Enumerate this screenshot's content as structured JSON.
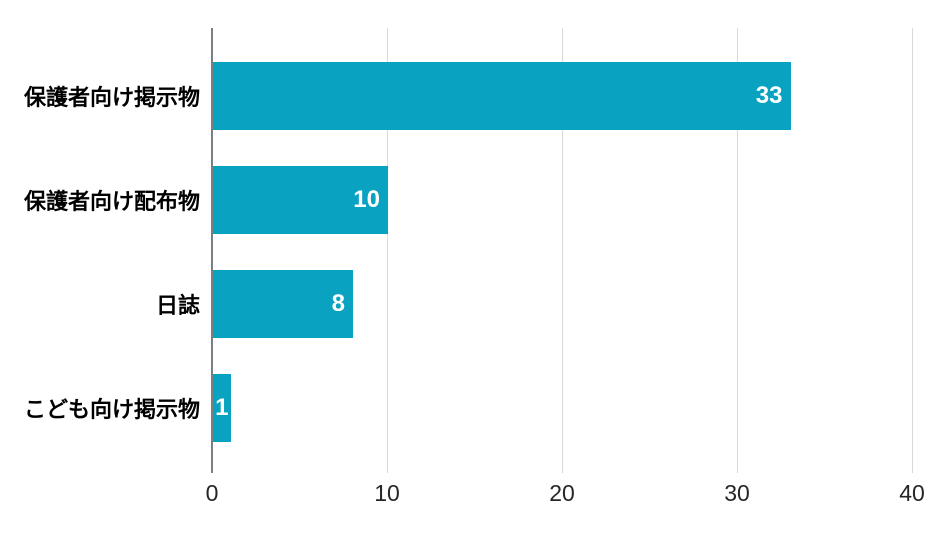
{
  "chart_data": {
    "type": "bar",
    "orientation": "horizontal",
    "title": "",
    "categories": [
      "保護者向け掲示物",
      "保護者向け配布物",
      "日誌",
      "こども向け掲示物"
    ],
    "values": [
      33,
      10,
      8,
      1
    ],
    "data_labels": [
      "33",
      "10",
      "8",
      "1"
    ],
    "x_ticks": [
      "0",
      "10",
      "20",
      "30",
      "40"
    ],
    "x_tick_values": [
      0,
      10,
      20,
      30,
      40
    ],
    "xlim": [
      0,
      40
    ],
    "grid": true,
    "legend": false,
    "data_label_position": "inside-end",
    "colors": {
      "bar": "#09a2c1",
      "data_label": "#ffffff",
      "category_label": "#000000",
      "tick_label": "#262626",
      "axis_line": "#7f7f7f",
      "gridline": "#d9d9d9",
      "background": "#ffffff"
    }
  }
}
